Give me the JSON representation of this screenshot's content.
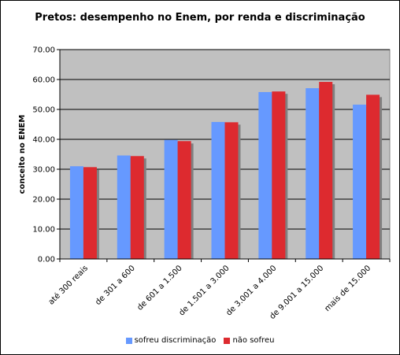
{
  "chart_data": {
    "type": "bar",
    "title": "Pretos: desempenho no Enem, por renda e discriminação",
    "ylabel": "conceito no ENEM",
    "xlabel": "",
    "ylim": [
      0,
      70
    ],
    "yticks": [
      "0.00",
      "10.00",
      "20.00",
      "30.00",
      "40.00",
      "50.00",
      "60.00",
      "70.00"
    ],
    "categories": [
      "até 300 reais",
      "de 301 a 600",
      "de 601 a 1.500",
      "de 1.501 a 3.000",
      "de 3.001 a 4.000",
      "de 9.001 a 15.000",
      "mais de 15.000"
    ],
    "series": [
      {
        "name": "sofreu discriminação",
        "color": "#6699FF",
        "values": [
          31.0,
          34.6,
          39.8,
          45.8,
          55.8,
          57.1,
          51.6
        ]
      },
      {
        "name": "não sofreu",
        "color": "#DD2A2F",
        "values": [
          30.7,
          34.4,
          39.4,
          45.7,
          56.0,
          59.2,
          54.9
        ]
      }
    ],
    "grid": true,
    "plot_background": "#C0C0C0",
    "legend_position": "bottom"
  }
}
